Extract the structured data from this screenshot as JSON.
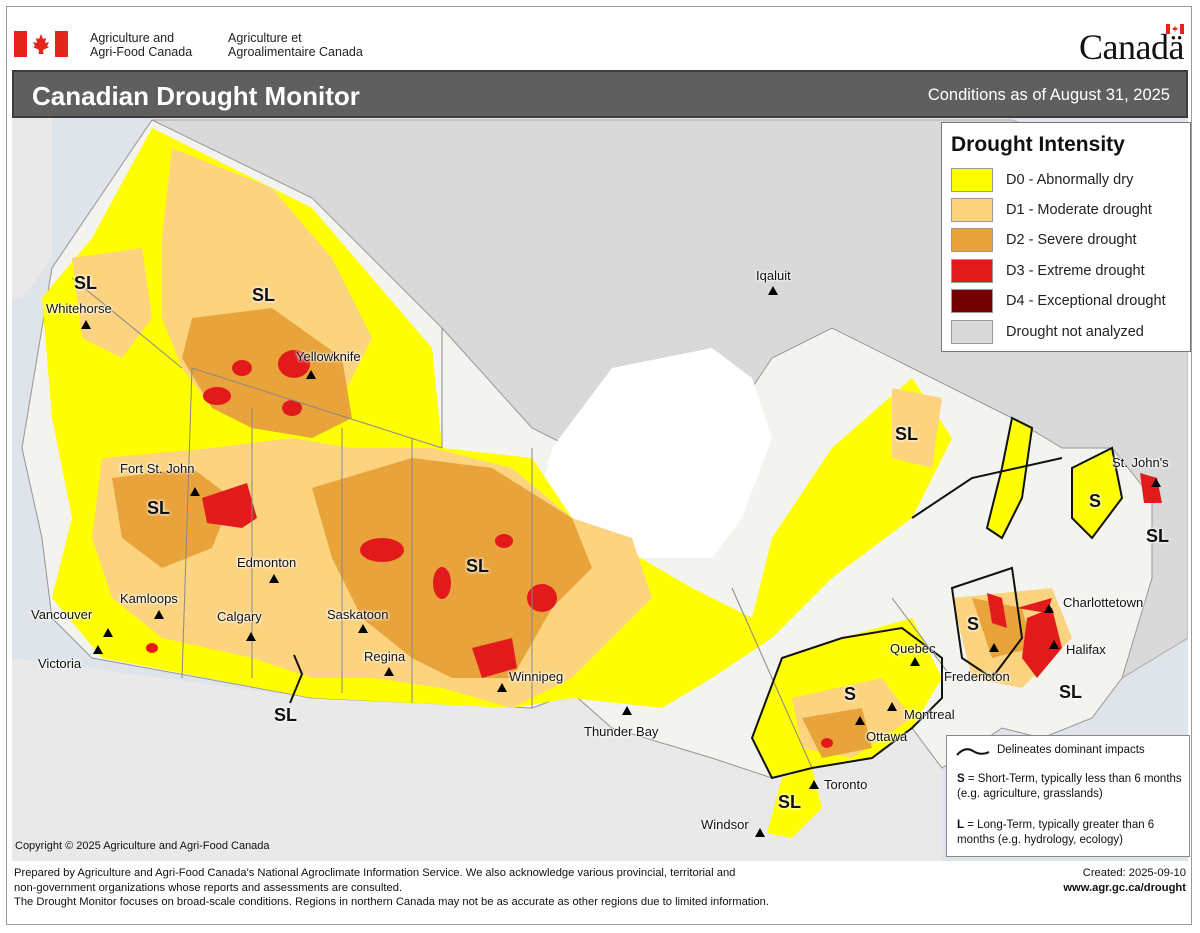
{
  "header": {
    "org_en_line1": "Agriculture and",
    "org_en_line2": "Agri-Food Canada",
    "org_fr_line1": "Agriculture et",
    "org_fr_line2": "Agroalimentaire Canada",
    "wordmark": "Canadä",
    "title": "Canadian Drought Monitor",
    "conditions": "Conditions as of August 31, 2025"
  },
  "legend": {
    "title": "Drought Intensity",
    "items": [
      {
        "label": "D0 - Abnormally dry",
        "color": "#ffff00"
      },
      {
        "label": "D1 - Moderate drought",
        "color": "#fcd37f"
      },
      {
        "label": "D2 - Severe drought",
        "color": "#e8a33a"
      },
      {
        "label": "D3 - Extreme drought",
        "color": "#e31a1c"
      },
      {
        "label": "D4 - Exceptional drought",
        "color": "#730000"
      },
      {
        "label": "Drought not analyzed",
        "color": "#d9d9d9"
      }
    ]
  },
  "impact_note": {
    "line_label": "Delineates dominant impacts",
    "s_key": "S",
    "s_text": " = Short-Term, typically less than 6 months (e.g. agriculture, grasslands)",
    "l_key": "L",
    "l_text": " = Long-Term, typically greater  than 6 months (e.g. hydrology, ecology)"
  },
  "map": {
    "cities": [
      {
        "name": "Whitehorse"
      },
      {
        "name": "Yellowknife"
      },
      {
        "name": "Iqaluit"
      },
      {
        "name": "Fort St. John"
      },
      {
        "name": "Edmonton"
      },
      {
        "name": "Kamloops"
      },
      {
        "name": "Vancouver"
      },
      {
        "name": "Victoria"
      },
      {
        "name": "Calgary"
      },
      {
        "name": "Saskatoon"
      },
      {
        "name": "Regina"
      },
      {
        "name": "Winnipeg"
      },
      {
        "name": "Thunder Bay"
      },
      {
        "name": "Windsor"
      },
      {
        "name": "Toronto"
      },
      {
        "name": "Ottawa"
      },
      {
        "name": "Montreal"
      },
      {
        "name": "Quebec"
      },
      {
        "name": "Fredericton"
      },
      {
        "name": "Halifax"
      },
      {
        "name": "Charlottetown"
      },
      {
        "name": "St. John's"
      }
    ],
    "impact_labels": [
      "SL",
      "SL",
      "SL",
      "SL",
      "SL",
      "SL",
      "SL",
      "SL",
      "S",
      "S",
      "S",
      "SL"
    ],
    "copyright": "Copyright © 2025 Agriculture and Agri-Food Canada"
  },
  "footer": {
    "line1": "Prepared by Agriculture and Agri-Food Canada's National Agroclimate Information Service.  We also acknowledge various provincial, territorial and",
    "line2": "non-government organizations whose reports and assessments are consulted.",
    "line3": "The Drought Monitor focuses on broad-scale conditions.  Regions in northern Canada may not be as accurate as other regions due to limited information.",
    "created": "Created: 2025-09-10",
    "url": "www.agr.gc.ca/drought"
  }
}
